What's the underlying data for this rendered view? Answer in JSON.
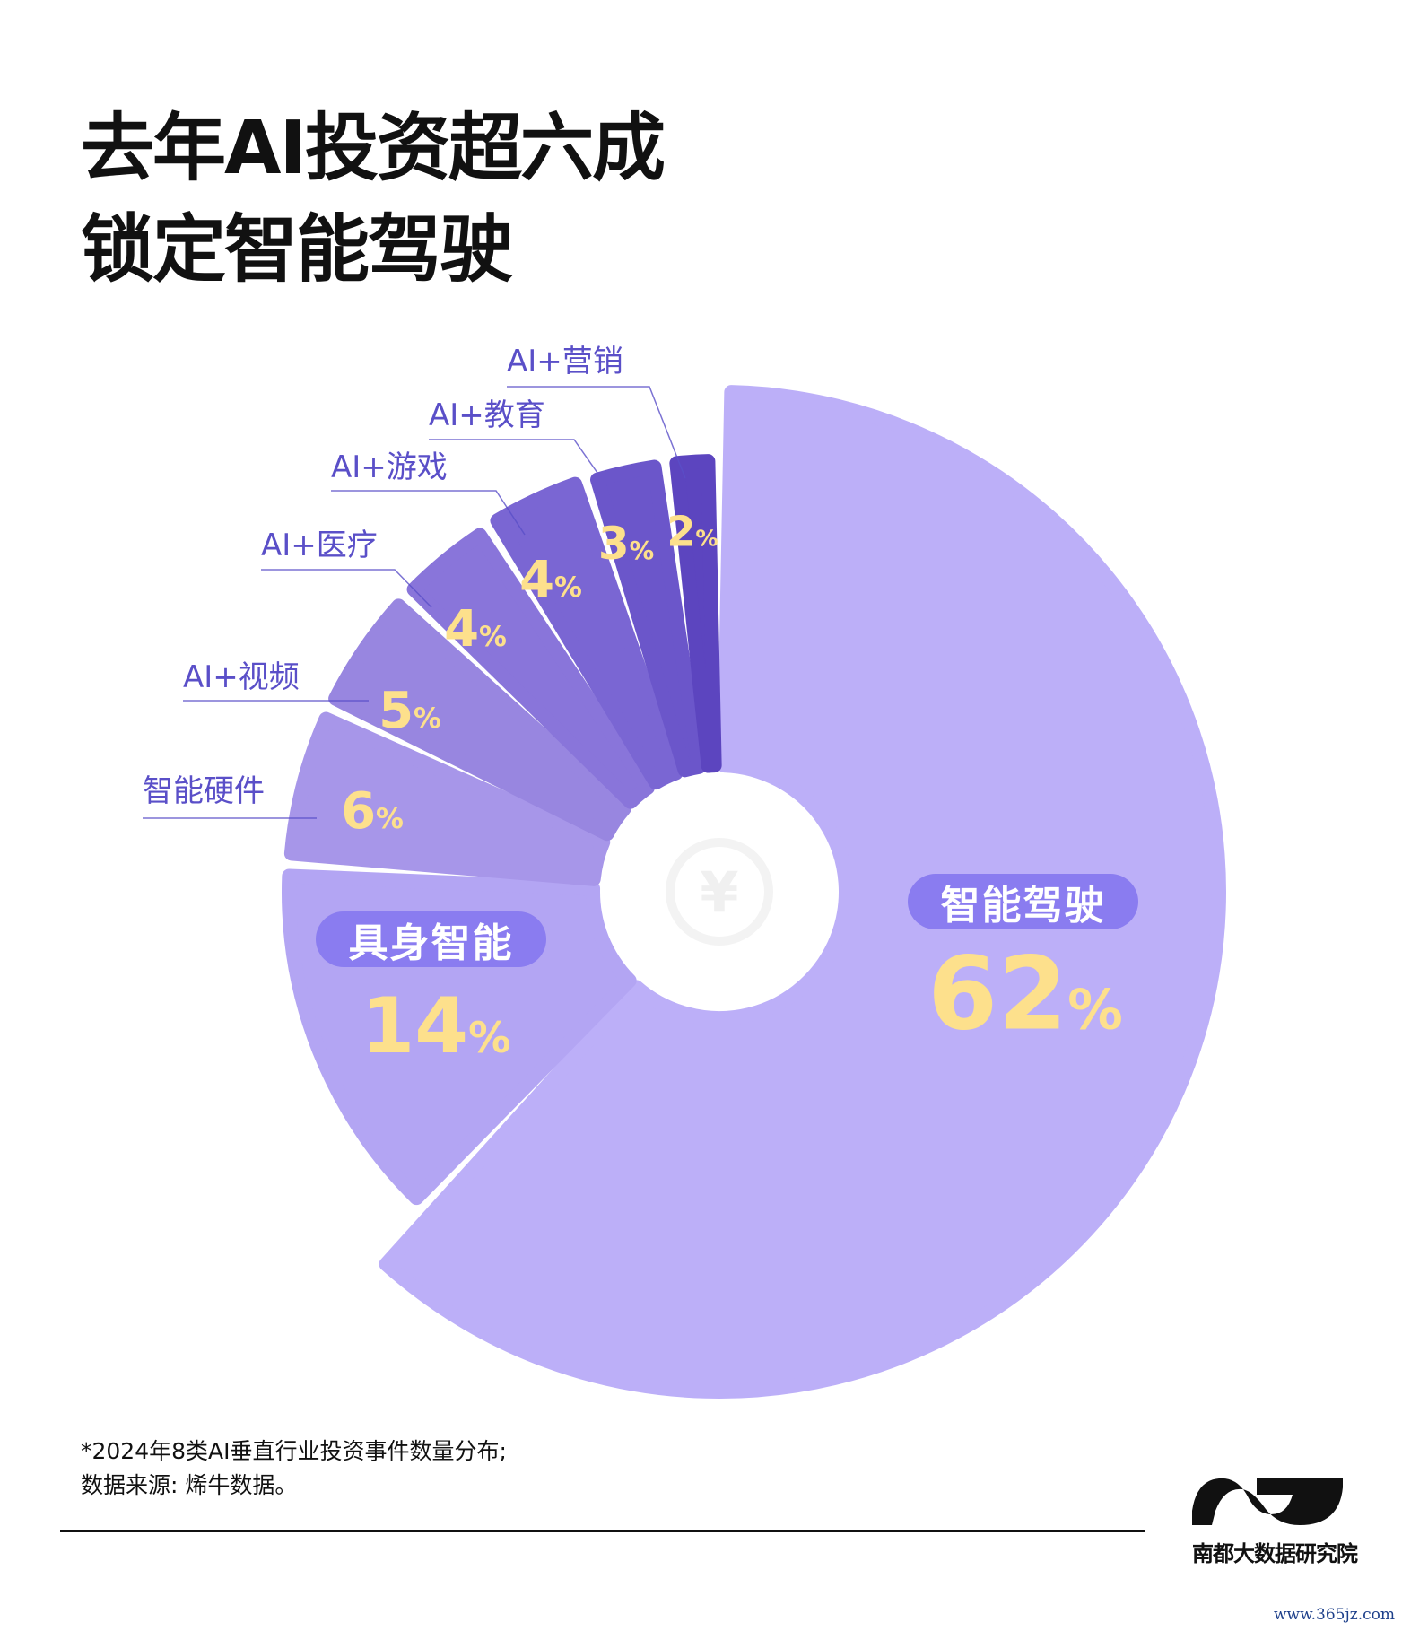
{
  "title": {
    "line1": "去年AI投资超六成",
    "line2": "锁定智能驾驶"
  },
  "chart_data": {
    "type": "pie",
    "title": "去年AI投资超六成 锁定智能驾驶",
    "categories": [
      "智能驾驶",
      "具身智能",
      "智能硬件",
      "AI+视频",
      "AI+医疗",
      "AI+游戏",
      "AI+教育",
      "AI+营销"
    ],
    "values": [
      62,
      14,
      6,
      5,
      4,
      4,
      3,
      2
    ],
    "unit": "%",
    "colors": [
      "#bcaff8",
      "#b3a5f3",
      "#a796e9",
      "#9886e0",
      "#8975da",
      "#7a66d3",
      "#6b56ca",
      "#5c45bf"
    ],
    "label_color": "#fde08c",
    "category_label_color": "#5a4fc8"
  },
  "footnote": {
    "line1": "*2024年8类AI垂直行业投资事件数量分布;",
    "line2": "数据来源: 烯牛数据。"
  },
  "logo": {
    "text": "南都大数据研究院"
  },
  "watermark": "www.365jz.com"
}
